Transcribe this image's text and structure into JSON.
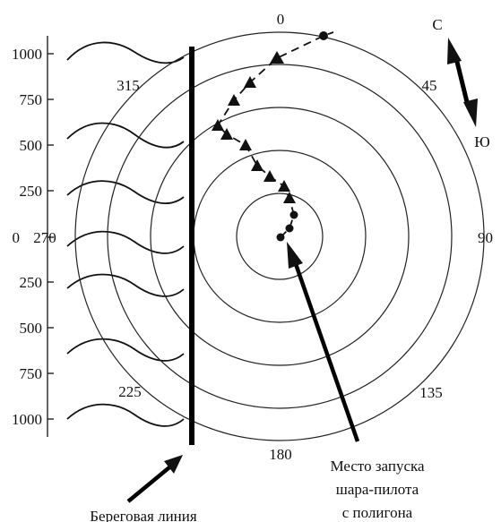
{
  "scale_labels": [
    "1000",
    "750",
    "500",
    "250",
    "0",
    "250",
    "500",
    "750",
    "1000"
  ],
  "bearings": {
    "b0": "0",
    "b45": "45",
    "b90": "90",
    "b135": "135",
    "b180": "180",
    "b225": "225",
    "b270": "270",
    "b315": "315"
  },
  "compass": {
    "north": "С",
    "south": "Ю"
  },
  "captions": {
    "coastline": "Береговая линия",
    "launch_line1": "Место запуска",
    "launch_line2": "шара-пилота",
    "launch_line3": "с полигона"
  },
  "colors": {
    "ink": "#111111",
    "background": "#ffffff"
  }
}
